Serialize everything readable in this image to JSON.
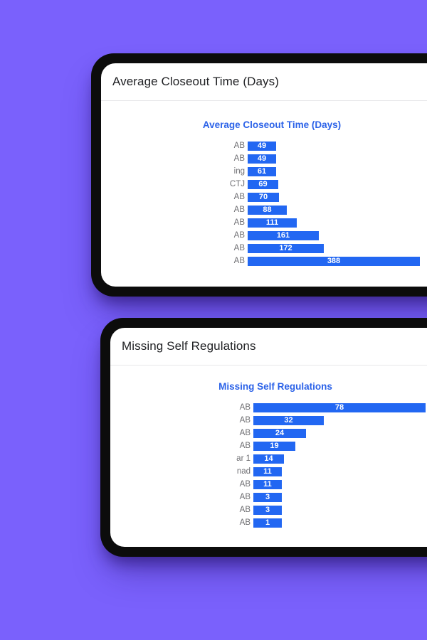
{
  "background_color": "#7a61fc",
  "frame_color": "#0c0c0c",
  "accent_blue": "#2267f2",
  "title_blue": "#2b62e8",
  "cards": [
    {
      "header": "Average Closeout Time (Days)",
      "chart_data": {
        "type": "bar",
        "orientation": "horizontal",
        "title": "Average Closeout Time (Days)",
        "categories": [
          "AB",
          "AB",
          "ing",
          "CTJ",
          "AB",
          "AB",
          "AB",
          "AB",
          "AB",
          "AB"
        ],
        "values": [
          49,
          49,
          61,
          69,
          70,
          88,
          111,
          161,
          172,
          388
        ],
        "xlim": [
          0,
          388
        ],
        "bar_color": "#2267f2",
        "value_label_color": "#ffffff",
        "category_label_color": "#6f6f73",
        "grid": false,
        "legend": "none",
        "notes": "value annotations drawn inside bars; category labels clipped on left edge"
      }
    },
    {
      "header": "Missing Self Regulations",
      "chart_data": {
        "type": "bar",
        "orientation": "horizontal",
        "title": "Missing Self Regulations",
        "categories": [
          "AB",
          "AB",
          "AB",
          "AB",
          "ar 1",
          "nad",
          "AB",
          "AB",
          "AB",
          "AB"
        ],
        "values": [
          78,
          32,
          24,
          19,
          14,
          11,
          11,
          3,
          3,
          1
        ],
        "xlim": [
          0,
          78
        ],
        "bar_color": "#2267f2",
        "value_label_color": "#ffffff",
        "category_label_color": "#6f6f73",
        "grid": false,
        "legend": "none",
        "notes": "value annotations drawn inside bars; category labels clipped on left edge"
      }
    }
  ]
}
